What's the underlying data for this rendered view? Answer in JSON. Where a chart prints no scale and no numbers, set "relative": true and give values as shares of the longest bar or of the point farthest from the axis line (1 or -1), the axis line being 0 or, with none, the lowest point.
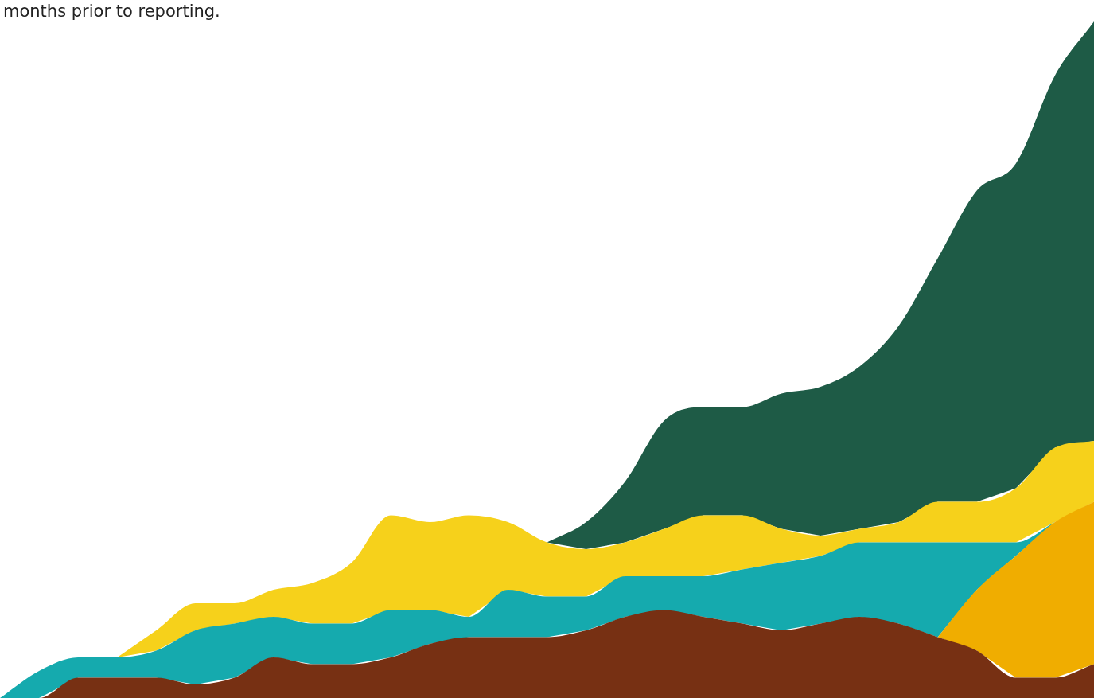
{
  "chart_data": {
    "type": "area",
    "stacked": true,
    "relative": true,
    "annotations": [
      "months prior to reporting."
    ],
    "categories": [
      null,
      null,
      null,
      null,
      null,
      null,
      null,
      null,
      null,
      null,
      null,
      null,
      null,
      null,
      null,
      null,
      null,
      null,
      null,
      null,
      null,
      null,
      null,
      null,
      null,
      null,
      null,
      null,
      null
    ],
    "series": [
      {
        "color": "#773013",
        "values": [
          0,
          0,
          0.03,
          0.03,
          0.03,
          0.02,
          0.03,
          0.06,
          0.05,
          0.05,
          0.06,
          0.08,
          0.09,
          0.09,
          0.09,
          0.1,
          0.12,
          0.13,
          0.12,
          0.11,
          0.1,
          0.11,
          0.12,
          0.11,
          0.09,
          0.07,
          0.03,
          0.03,
          0.05
        ]
      },
      {
        "color": "#f0ad00",
        "values": [
          null,
          null,
          null,
          null,
          null,
          null,
          null,
          null,
          null,
          null,
          null,
          null,
          null,
          null,
          null,
          null,
          null,
          null,
          null,
          null,
          null,
          null,
          null,
          null,
          0,
          0.09,
          0.18,
          0.23,
          0.24
        ]
      },
      {
        "color": "#15aaae",
        "values": [
          0,
          0.04,
          0.03,
          0.03,
          0.04,
          0.08,
          0.08,
          0.06,
          0.06,
          0.06,
          0.07,
          0.05,
          0.03,
          0.07,
          0.06,
          0.05,
          0.06,
          0.05,
          0.06,
          0.08,
          0.1,
          0.1,
          0.11,
          0.12,
          0.14,
          0.07,
          0.02,
          0,
          0
        ]
      },
      {
        "color": "#f6d11b",
        "values": [
          null,
          null,
          null,
          0,
          0.03,
          0.04,
          0.03,
          0.04,
          0.06,
          0.09,
          0.14,
          0.13,
          0.15,
          0.1,
          0.08,
          0.07,
          0.05,
          0.07,
          0.09,
          0.08,
          0.05,
          0.03,
          0.02,
          0.03,
          0.06,
          0.06,
          0.08,
          0.11,
          0.09
        ]
      },
      {
        "color": "#1e5b46",
        "values": [
          null,
          null,
          null,
          null,
          null,
          null,
          null,
          null,
          null,
          null,
          null,
          null,
          null,
          null,
          0,
          0.04,
          0.09,
          0.16,
          0.16,
          0.16,
          0.2,
          0.22,
          0.24,
          0.29,
          0.36,
          0.46,
          0.48,
          0.55,
          0.62
        ]
      }
    ]
  }
}
